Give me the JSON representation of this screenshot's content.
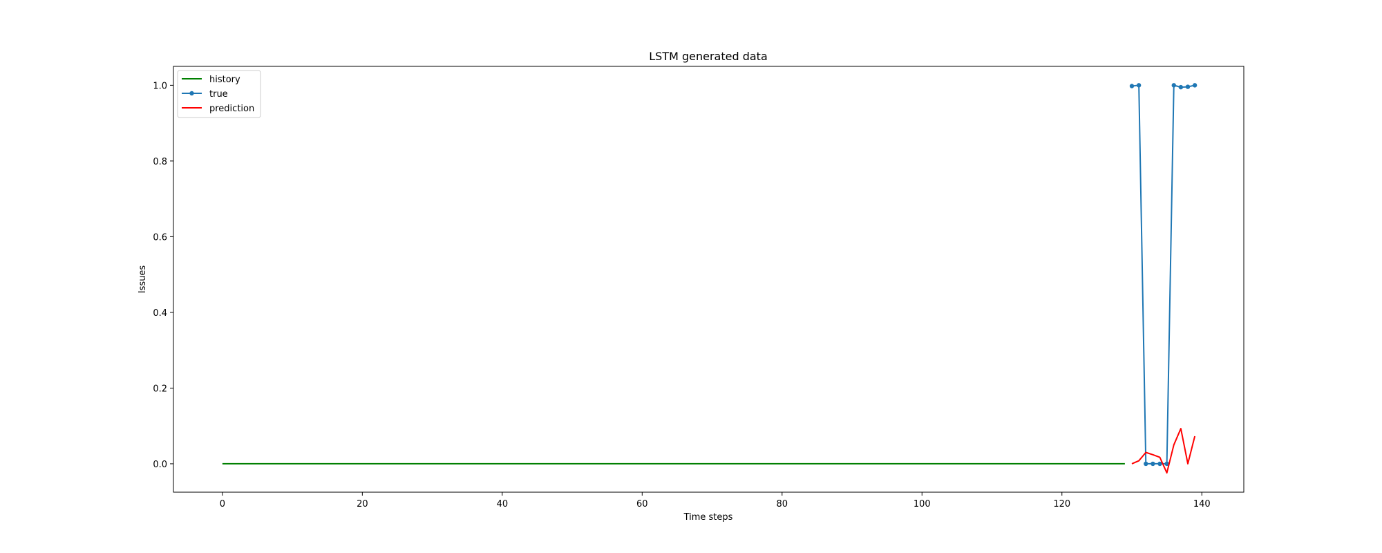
{
  "chart_data": {
    "type": "line",
    "title": "LSTM generated data",
    "xlabel": "Time steps",
    "ylabel": "Issues",
    "xlim": [
      -7,
      146
    ],
    "ylim": [
      -0.075,
      1.05
    ],
    "xticks": [
      0,
      20,
      40,
      60,
      80,
      100,
      120,
      140
    ],
    "yticks": [
      0.0,
      0.2,
      0.4,
      0.6,
      0.8,
      1.0
    ],
    "xtick_labels": [
      "0",
      "20",
      "40",
      "60",
      "80",
      "100",
      "120",
      "140"
    ],
    "ytick_labels": [
      "0.0",
      "0.2",
      "0.4",
      "0.6",
      "0.8",
      "1.0"
    ],
    "grid": false,
    "legend_position": "top-left",
    "series": [
      {
        "name": "history",
        "color": "#008000",
        "marker": "none",
        "x_start": 0,
        "x_end": 129,
        "constant_value": 0.0
      },
      {
        "name": "true",
        "color": "#1f77b4",
        "marker": "dot",
        "x": [
          130,
          131,
          132,
          133,
          134,
          135,
          136,
          137,
          138,
          139
        ],
        "values": [
          0.998,
          1.0,
          0.0,
          0.0,
          0.0,
          0.0,
          1.0,
          0.995,
          0.996,
          1.0
        ]
      },
      {
        "name": "prediction",
        "color": "#ff0000",
        "marker": "none",
        "x": [
          130,
          131,
          132,
          133,
          134,
          135,
          136,
          137,
          138,
          139
        ],
        "values": [
          0.0,
          0.008,
          0.03,
          0.024,
          0.017,
          -0.024,
          0.05,
          0.093,
          0.0,
          0.073
        ]
      }
    ]
  }
}
